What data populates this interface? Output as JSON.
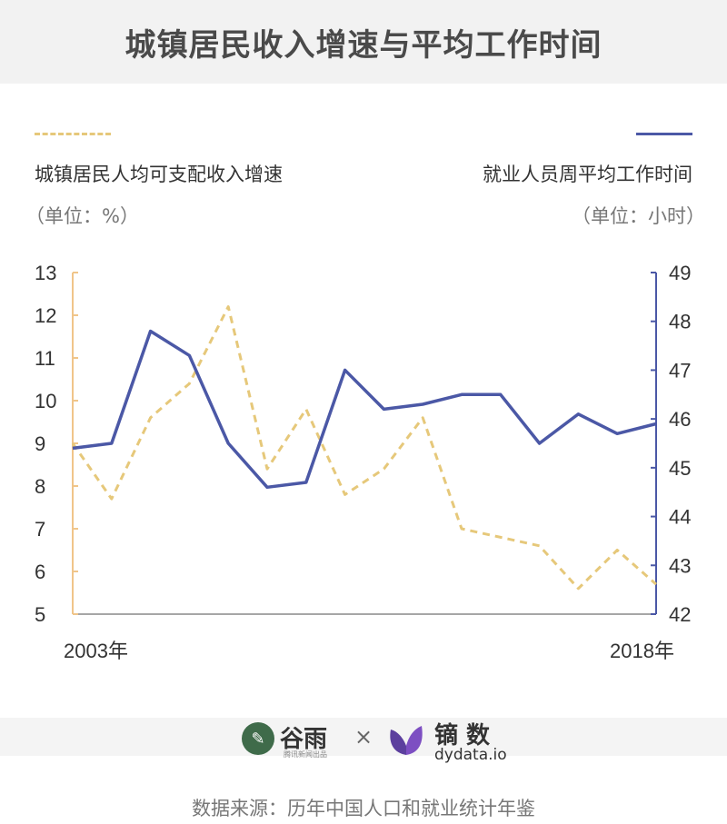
{
  "header": {
    "title": "城镇居民收入增速与平均工作时间"
  },
  "legend": {
    "left_series": "城镇居民人均可支配收入增速",
    "left_unit": "（单位：%）",
    "right_series": "就业人员周平均工作时间",
    "right_unit": "（单位：小时）"
  },
  "colors": {
    "income": "#e6c87a",
    "hours": "#4b58a6",
    "left_axis": "#f0c58a",
    "right_axis": "#4b58a6"
  },
  "chart_data": {
    "type": "line",
    "x": [
      "2003",
      "2004",
      "2005",
      "2006",
      "2007",
      "2008",
      "2009",
      "2010",
      "2011",
      "2012",
      "2013",
      "2014",
      "2015",
      "2016",
      "2017",
      "2018"
    ],
    "x_tick_labels": [
      "2003年",
      "2018年"
    ],
    "series": [
      {
        "name": "城镇居民人均可支配收入增速",
        "axis": "left",
        "style": "dashed",
        "color": "#e6c87a",
        "values": [
          9.0,
          7.7,
          9.6,
          10.4,
          12.2,
          8.4,
          9.8,
          7.8,
          8.4,
          9.6,
          7.0,
          6.8,
          6.6,
          5.6,
          6.5,
          5.7
        ]
      },
      {
        "name": "就业人员周平均工作时间",
        "axis": "right",
        "style": "solid",
        "color": "#4b58a6",
        "values": [
          45.4,
          45.5,
          47.8,
          47.3,
          45.5,
          44.6,
          44.7,
          47.0,
          46.2,
          46.3,
          46.5,
          46.5,
          45.5,
          46.1,
          45.7,
          45.9
        ]
      }
    ],
    "y_left": {
      "ylim": [
        5,
        13
      ],
      "ticks": [
        "13",
        "12",
        "11",
        "10",
        "9",
        "8",
        "7",
        "6",
        "5"
      ]
    },
    "y_right": {
      "ylim": [
        42,
        49
      ],
      "ticks": [
        "49",
        "48",
        "47",
        "46",
        "45",
        "44",
        "43",
        "42"
      ]
    },
    "grid": false
  },
  "brands": {
    "left_logo_text": "谷雨",
    "left_logo_sub": "腾讯新闻出品",
    "cross": "×",
    "right_logo_text": "镝 数",
    "right_logo_sub": "dydata.io"
  },
  "footer": {
    "source": "数据来源：历年中国人口和就业统计年鉴"
  }
}
